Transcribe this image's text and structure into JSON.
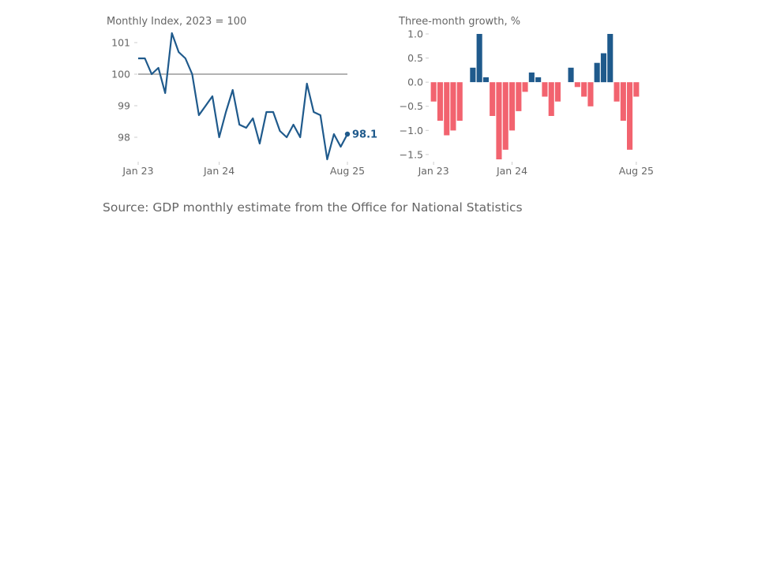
{
  "source": "Source: GDP monthly estimate from the Office for National Statistics",
  "colors": {
    "line": "#1f5a8c",
    "positive": "#1f5a8c",
    "negative": "#f2636f",
    "reference": "#b3b3b3",
    "text": "#666666"
  },
  "chart_data": [
    {
      "type": "line",
      "title": "Monthly Index, 2023 = 100",
      "x": [
        "Jan 23",
        "Feb 23",
        "Mar 23",
        "Apr 23",
        "May 23",
        "Jun 23",
        "Jul 23",
        "Aug 23",
        "Sep 23",
        "Oct 23",
        "Nov 23",
        "Dec 23",
        "Jan 24",
        "Feb 24",
        "Mar 24",
        "Apr 24",
        "May 24",
        "Jun 24",
        "Jul 24",
        "Aug 24",
        "Sep 24",
        "Oct 24",
        "Nov 24",
        "Dec 24",
        "Jan 25",
        "Feb 25",
        "Mar 25",
        "Apr 25",
        "May 25",
        "Jun 25",
        "Jul 25",
        "Aug 25"
      ],
      "values": [
        100.5,
        100.5,
        100.0,
        100.2,
        99.4,
        101.3,
        100.7,
        100.5,
        100.0,
        98.7,
        99.0,
        99.3,
        98.0,
        98.8,
        99.5,
        98.4,
        98.3,
        98.6,
        97.8,
        98.8,
        98.8,
        98.2,
        98.0,
        98.4,
        98.0,
        99.7,
        98.8,
        98.7,
        97.3,
        98.1,
        97.7,
        98.1
      ],
      "ylim": [
        97.3,
        101.3
      ],
      "yticks": [
        "101",
        "100",
        "99",
        "98"
      ],
      "xticks": [
        "Jan 23",
        "Jan 24",
        "Aug 25"
      ],
      "reference_line": 100,
      "end_label": "98.1"
    },
    {
      "type": "bar",
      "title": "Three-month growth, %",
      "x": [
        "Jan 23",
        "Feb 23",
        "Mar 23",
        "Apr 23",
        "May 23",
        "Jun 23",
        "Jul 23",
        "Aug 23",
        "Sep 23",
        "Oct 23",
        "Nov 23",
        "Dec 23",
        "Jan 24",
        "Feb 24",
        "Mar 24",
        "Apr 24",
        "May 24",
        "Jun 24",
        "Jul 24",
        "Aug 24",
        "Sep 24",
        "Oct 24",
        "Nov 24",
        "Dec 24",
        "Jan 25",
        "Feb 25",
        "Mar 25",
        "Apr 25",
        "May 25",
        "Jun 25",
        "Jul 25",
        "Aug 25"
      ],
      "values": [
        -0.4,
        -0.8,
        -1.1,
        -1.0,
        -0.8,
        0.0,
        0.3,
        1.0,
        0.1,
        -0.7,
        -1.6,
        -1.4,
        -1.0,
        -0.6,
        -0.2,
        0.2,
        0.1,
        -0.3,
        -0.7,
        -0.4,
        0.0,
        0.3,
        -0.1,
        -0.3,
        -0.5,
        0.4,
        0.6,
        1.0,
        -0.4,
        -0.8,
        -1.4,
        -0.3
      ],
      "ylim": [
        -1.6,
        1.0
      ],
      "yticks": [
        "1.0",
        "0.5",
        "0.0",
        "−0.5",
        "−1.0",
        "−1.5"
      ],
      "xticks": [
        "Jan 23",
        "Jan 24",
        "Aug 25"
      ]
    }
  ]
}
